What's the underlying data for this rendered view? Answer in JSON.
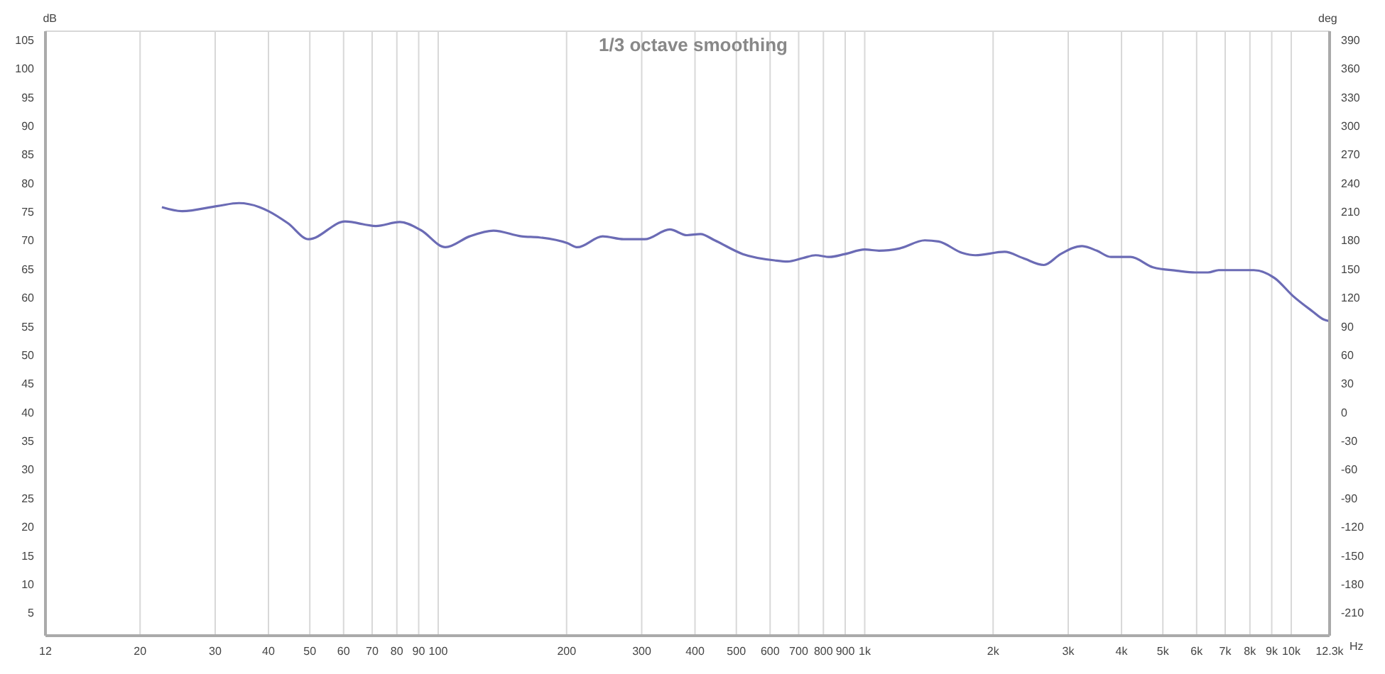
{
  "chart_data": {
    "type": "line",
    "title": "1/3 octave smoothing",
    "xlabel": "Hz",
    "ylabel": "dB",
    "y2label": "deg",
    "log": "x",
    "grid": true,
    "marker": "none",
    "line_style": "solid",
    "legend": false,
    "xlim": [
      12,
      12300
    ],
    "xticks": [
      12,
      20,
      30,
      40,
      50,
      60,
      70,
      80,
      90,
      100,
      200,
      300,
      400,
      500,
      600,
      700,
      800,
      900,
      {
        "value": 1000,
        "label": "1k"
      },
      {
        "value": 2000,
        "label": "2k"
      },
      {
        "value": 3000,
        "label": "3k"
      },
      {
        "value": 4000,
        "label": "4k"
      },
      {
        "value": 5000,
        "label": "5k"
      },
      {
        "value": 6000,
        "label": "6k"
      },
      {
        "value": 7000,
        "label": "7k"
      },
      {
        "value": 8000,
        "label": "8k"
      },
      {
        "value": 9000,
        "label": "9k"
      },
      {
        "value": 10000,
        "label": "10k"
      },
      {
        "value": 12300,
        "label": "12.3k"
      }
    ],
    "ylim": [
      1,
      106.5
    ],
    "yticks": [
      5,
      10,
      15,
      20,
      25,
      30,
      35,
      40,
      45,
      50,
      55,
      60,
      65,
      70,
      75,
      80,
      85,
      90,
      95,
      100,
      105
    ],
    "y2lim": [
      -234,
      399
    ],
    "y2ticks": [
      -210,
      -180,
      -150,
      -120,
      -90,
      -60,
      -30,
      0,
      30,
      60,
      90,
      120,
      150,
      180,
      210,
      240,
      270,
      300,
      330,
      360,
      390
    ],
    "series": [
      {
        "color": "#6b6bb5",
        "x": [
          22.5,
          25.1,
          30.4,
          34.1,
          38.1,
          40,
          44.4,
          49.7,
          60.5,
          71.4,
          81.3,
          91,
          104,
          118.5,
          134.8,
          156.8,
          173,
          201,
          212,
          243,
          272,
          305,
          349,
          383,
          412,
          445,
          518,
          615,
          659,
          716,
          767,
          827,
          898,
          1000,
          1080,
          1208,
          1383,
          1490,
          1694,
          1817,
          2128,
          2350,
          2631,
          2879,
          3228,
          3500,
          3776,
          4200,
          4740,
          5395,
          5950,
          6380,
          6760,
          8170,
          9150,
          10090,
          11220,
          11910,
          12300
        ],
        "values": [
          75.8,
          75.1,
          76.0,
          76.5,
          75.8,
          75.1,
          73.0,
          70.2,
          73.3,
          72.5,
          73.2,
          71.8,
          68.8,
          70.7,
          71.7,
          70.7,
          70.5,
          69.5,
          68.8,
          70.7,
          70.2,
          70.2,
          71.9,
          70.9,
          71.1,
          70.0,
          67.6,
          66.5,
          66.3,
          66.9,
          67.4,
          67.1,
          67.6,
          68.4,
          68.2,
          68.6,
          70.0,
          69.8,
          67.8,
          67.4,
          68.0,
          66.9,
          65.7,
          67.6,
          69.0,
          68.2,
          67.1,
          67.1,
          65.3,
          64.7,
          64.4,
          64.4,
          64.8,
          64.8,
          63.4,
          60.3,
          57.6,
          56.2,
          55.9
        ]
      }
    ]
  }
}
